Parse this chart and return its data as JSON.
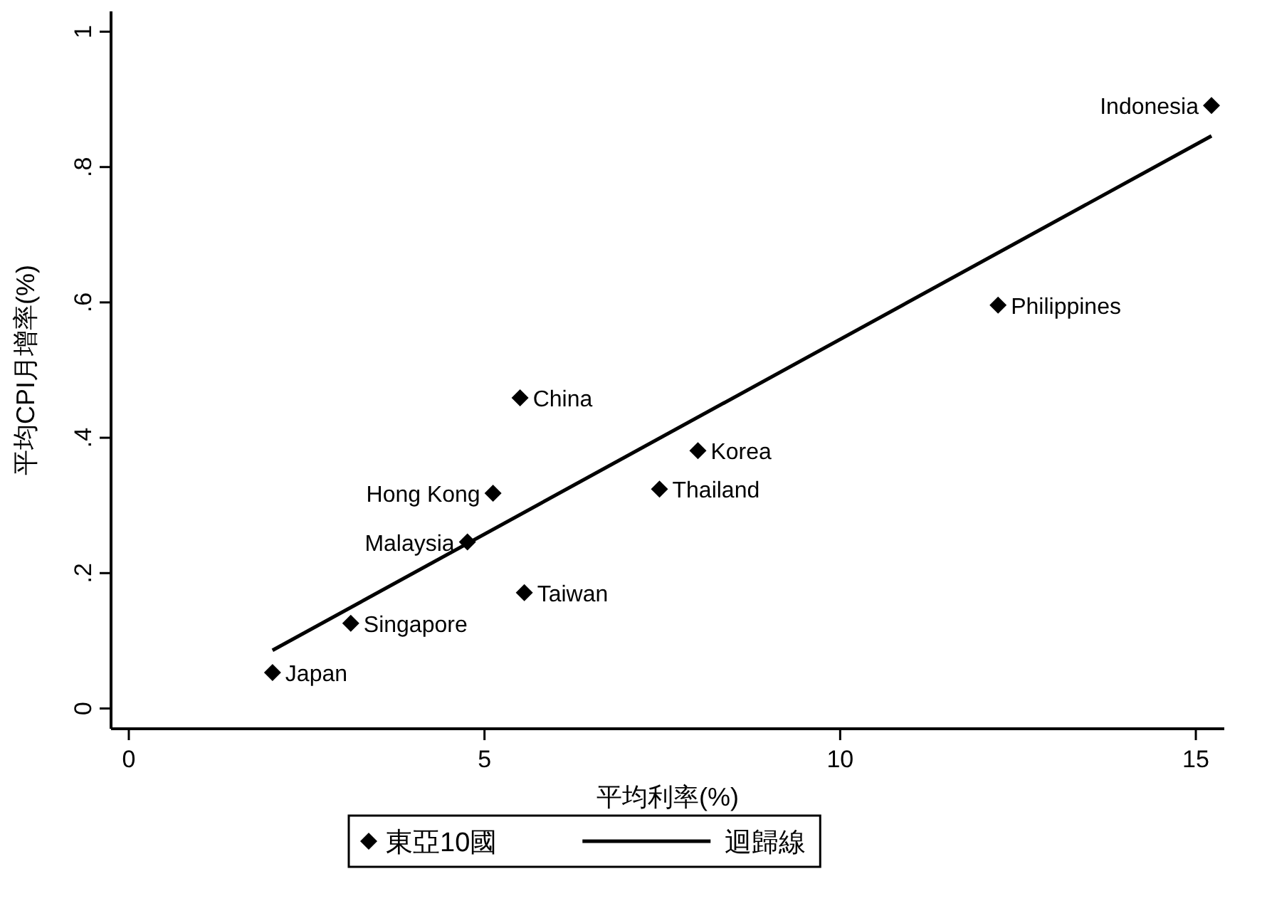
{
  "chart_data": {
    "type": "scatter",
    "xlabel": "平均利率(%)",
    "ylabel": "平均CPI月增率(%)",
    "xlim": [
      -0.25,
      15.4
    ],
    "ylim": [
      -0.03,
      1.03
    ],
    "xticks": [
      0,
      5,
      10,
      15
    ],
    "yticks": [
      {
        "value": 0,
        "label": "0"
      },
      {
        "value": 0.2,
        "label": ".2"
      },
      {
        "value": 0.4,
        "label": ".4"
      },
      {
        "value": 0.6,
        "label": ".6"
      },
      {
        "value": 0.8,
        "label": ".8"
      },
      {
        "value": 1,
        "label": "1"
      }
    ],
    "grid": false,
    "legend": "bottom",
    "line_style": "solid",
    "series": [
      {
        "name": "東亞10國",
        "marker": "diamond",
        "color": "#000000",
        "x": [
          15.22,
          12.22,
          5.5,
          8.0,
          7.46,
          5.12,
          4.76,
          5.56,
          3.12,
          2.02
        ],
        "values": [
          0.891,
          0.596,
          0.459,
          0.381,
          0.324,
          0.318,
          0.246,
          0.171,
          0.126,
          0.053
        ]
      },
      {
        "name": "迴歸線",
        "type": "line",
        "marker": "none",
        "color": "#000000",
        "x": [
          2.02,
          15.22
        ],
        "values": [
          0.086,
          0.846
        ]
      }
    ],
    "annotations": [
      {
        "text": "Indonesia",
        "x": 15.22,
        "y": 0.891
      },
      {
        "text": "Philippines",
        "x": 12.22,
        "y": 0.596
      },
      {
        "text": "China",
        "x": 5.5,
        "y": 0.459
      },
      {
        "text": "Korea",
        "x": 8.0,
        "y": 0.381
      },
      {
        "text": "Thailand",
        "x": 7.46,
        "y": 0.324
      },
      {
        "text": "Hong Kong",
        "x": 5.12,
        "y": 0.318
      },
      {
        "text": "Malaysia",
        "x": 4.76,
        "y": 0.246
      },
      {
        "text": "Taiwan",
        "x": 5.56,
        "y": 0.171
      },
      {
        "text": "Singapore",
        "x": 3.12,
        "y": 0.126
      },
      {
        "text": "Japan",
        "x": 2.02,
        "y": 0.053
      }
    ]
  }
}
